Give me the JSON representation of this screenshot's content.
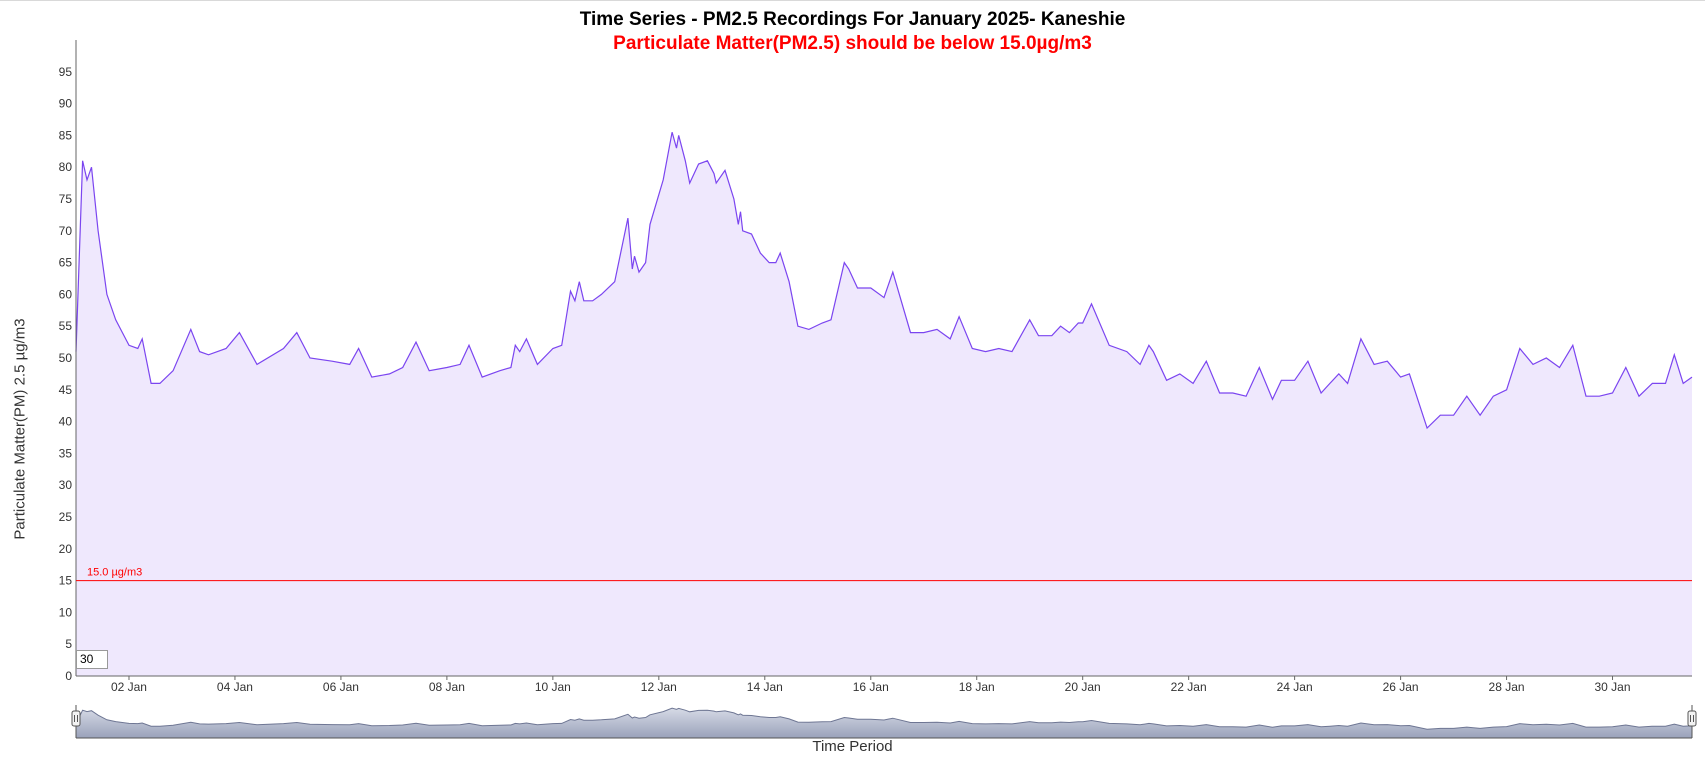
{
  "chart_data": {
    "type": "area",
    "title": "Time Series - PM2.5 Recordings For January 2025- Kaneshie",
    "subtitle": "Particulate Matter(PM2.5) should be below 15.0µg/m3",
    "xlabel": "Time Period",
    "ylabel": "Particulate Matter(PM) 2.5 µg/m3",
    "ylim": [
      0,
      100
    ],
    "xlim": [
      "2025-01-01",
      "2025-01-31 12:00"
    ],
    "grid": false,
    "yticks": [
      0,
      5,
      10,
      15,
      20,
      25,
      30,
      35,
      40,
      45,
      50,
      55,
      60,
      65,
      70,
      75,
      80,
      85,
      90,
      95
    ],
    "xtick_labels": [
      "02 Jan",
      "04 Jan",
      "06 Jan",
      "08 Jan",
      "10 Jan",
      "12 Jan",
      "14 Jan",
      "16 Jan",
      "18 Jan",
      "20 Jan",
      "22 Jan",
      "24 Jan",
      "26 Jan",
      "28 Jan",
      "30 Jan"
    ],
    "xtick_dates": [
      "2025-01-02",
      "2025-01-04",
      "2025-01-06",
      "2025-01-08",
      "2025-01-10",
      "2025-01-12",
      "2025-01-14",
      "2025-01-16",
      "2025-01-18",
      "2025-01-20",
      "2025-01-22",
      "2025-01-24",
      "2025-01-26",
      "2025-01-28",
      "2025-01-30"
    ],
    "threshold": {
      "value": 15,
      "label": "15.0 µg/m3",
      "color": "#ff0000"
    },
    "series": [
      {
        "color": "#7b45f0",
        "fill": "#efe8fd",
        "points": [
          [
            "2025-01-01 00:00",
            51
          ],
          [
            "2025-01-01 03:00",
            81
          ],
          [
            "2025-01-01 05:00",
            78
          ],
          [
            "2025-01-01 07:00",
            80
          ],
          [
            "2025-01-01 10:00",
            70
          ],
          [
            "2025-01-01 14:00",
            60
          ],
          [
            "2025-01-01 18:00",
            56
          ],
          [
            "2025-01-02 00:00",
            52
          ],
          [
            "2025-01-02 04:00",
            51.5
          ],
          [
            "2025-01-02 06:00",
            53
          ],
          [
            "2025-01-02 10:00",
            46
          ],
          [
            "2025-01-02 14:00",
            46
          ],
          [
            "2025-01-02 20:00",
            48
          ],
          [
            "2025-01-03 04:00",
            54.5
          ],
          [
            "2025-01-03 08:00",
            51
          ],
          [
            "2025-01-03 12:00",
            50.5
          ],
          [
            "2025-01-03 20:00",
            51.5
          ],
          [
            "2025-01-04 02:00",
            54
          ],
          [
            "2025-01-04 10:00",
            49
          ],
          [
            "2025-01-04 22:00",
            51.5
          ],
          [
            "2025-01-05 04:00",
            54
          ],
          [
            "2025-01-05 10:00",
            50
          ],
          [
            "2025-01-05 20:00",
            49.5
          ],
          [
            "2025-01-06 04:00",
            49
          ],
          [
            "2025-01-06 08:00",
            51.5
          ],
          [
            "2025-01-06 14:00",
            47
          ],
          [
            "2025-01-06 22:00",
            47.5
          ],
          [
            "2025-01-07 04:00",
            48.5
          ],
          [
            "2025-01-07 10:00",
            52.5
          ],
          [
            "2025-01-07 16:00",
            48
          ],
          [
            "2025-01-08 00:00",
            48.5
          ],
          [
            "2025-01-08 06:00",
            49
          ],
          [
            "2025-01-08 10:00",
            52
          ],
          [
            "2025-01-08 16:00",
            47
          ],
          [
            "2025-01-09 00:00",
            48
          ],
          [
            "2025-01-09 05:00",
            48.5
          ],
          [
            "2025-01-09 07:00",
            52
          ],
          [
            "2025-01-09 09:00",
            51
          ],
          [
            "2025-01-09 12:00",
            53
          ],
          [
            "2025-01-09 17:00",
            49
          ],
          [
            "2025-01-10 00:00",
            51.5
          ],
          [
            "2025-01-10 04:00",
            52
          ],
          [
            "2025-01-10 08:00",
            60.5
          ],
          [
            "2025-01-10 10:00",
            59
          ],
          [
            "2025-01-10 12:00",
            62
          ],
          [
            "2025-01-10 14:00",
            59
          ],
          [
            "2025-01-10 18:00",
            59
          ],
          [
            "2025-01-10 22:00",
            60
          ],
          [
            "2025-01-11 04:00",
            62
          ],
          [
            "2025-01-11 10:00",
            72
          ],
          [
            "2025-01-11 12:00",
            64
          ],
          [
            "2025-01-11 13:00",
            66
          ],
          [
            "2025-01-11 15:00",
            63.5
          ],
          [
            "2025-01-11 18:00",
            65
          ],
          [
            "2025-01-11 20:00",
            71
          ],
          [
            "2025-01-12 02:00",
            78
          ],
          [
            "2025-01-12 06:00",
            85.5
          ],
          [
            "2025-01-12 08:00",
            83
          ],
          [
            "2025-01-12 09:00",
            85
          ],
          [
            "2025-01-12 12:00",
            81
          ],
          [
            "2025-01-12 14:00",
            77.5
          ],
          [
            "2025-01-12 18:00",
            80.5
          ],
          [
            "2025-01-12 22:00",
            81
          ],
          [
            "2025-01-13 01:00",
            79
          ],
          [
            "2025-01-13 02:00",
            77.5
          ],
          [
            "2025-01-13 06:00",
            79.5
          ],
          [
            "2025-01-13 10:00",
            75
          ],
          [
            "2025-01-13 12:00",
            71
          ],
          [
            "2025-01-13 13:00",
            73
          ],
          [
            "2025-01-13 14:00",
            70
          ],
          [
            "2025-01-13 18:00",
            69.5
          ],
          [
            "2025-01-13 22:00",
            66.5
          ],
          [
            "2025-01-14 02:00",
            65
          ],
          [
            "2025-01-14 05:00",
            65
          ],
          [
            "2025-01-14 07:00",
            66.5
          ],
          [
            "2025-01-14 11:00",
            62
          ],
          [
            "2025-01-14 15:00",
            55
          ],
          [
            "2025-01-14 20:00",
            54.5
          ],
          [
            "2025-01-15 02:00",
            55.5
          ],
          [
            "2025-01-15 06:00",
            56
          ],
          [
            "2025-01-15 12:00",
            65
          ],
          [
            "2025-01-15 14:00",
            64
          ],
          [
            "2025-01-15 18:00",
            61
          ],
          [
            "2025-01-16 00:00",
            61
          ],
          [
            "2025-01-16 06:00",
            59.5
          ],
          [
            "2025-01-16 10:00",
            63.5
          ],
          [
            "2025-01-16 18:00",
            54
          ],
          [
            "2025-01-17 00:00",
            54
          ],
          [
            "2025-01-17 06:00",
            54.5
          ],
          [
            "2025-01-17 12:00",
            53
          ],
          [
            "2025-01-17 16:00",
            56.5
          ],
          [
            "2025-01-17 22:00",
            51.5
          ],
          [
            "2025-01-18 04:00",
            51
          ],
          [
            "2025-01-18 10:00",
            51.5
          ],
          [
            "2025-01-18 16:00",
            51
          ],
          [
            "2025-01-19 00:00",
            56
          ],
          [
            "2025-01-19 04:00",
            53.5
          ],
          [
            "2025-01-19 10:00",
            53.5
          ],
          [
            "2025-01-19 14:00",
            55
          ],
          [
            "2025-01-19 18:00",
            54
          ],
          [
            "2025-01-19 22:00",
            55.5
          ],
          [
            "2025-01-20 00:00",
            55.5
          ],
          [
            "2025-01-20 04:00",
            58.5
          ],
          [
            "2025-01-20 12:00",
            52
          ],
          [
            "2025-01-20 20:00",
            51
          ],
          [
            "2025-01-21 02:00",
            49
          ],
          [
            "2025-01-21 06:00",
            52
          ],
          [
            "2025-01-21 08:00",
            51
          ],
          [
            "2025-01-21 14:00",
            46.5
          ],
          [
            "2025-01-21 20:00",
            47.5
          ],
          [
            "2025-01-22 02:00",
            46
          ],
          [
            "2025-01-22 08:00",
            49.5
          ],
          [
            "2025-01-22 14:00",
            44.5
          ],
          [
            "2025-01-22 20:00",
            44.5
          ],
          [
            "2025-01-23 02:00",
            44
          ],
          [
            "2025-01-23 08:00",
            48.5
          ],
          [
            "2025-01-23 14:00",
            43.5
          ],
          [
            "2025-01-23 18:00",
            46.5
          ],
          [
            "2025-01-24 00:00",
            46.5
          ],
          [
            "2025-01-24 06:00",
            49.5
          ],
          [
            "2025-01-24 12:00",
            44.5
          ],
          [
            "2025-01-24 16:00",
            46
          ],
          [
            "2025-01-24 20:00",
            47.5
          ],
          [
            "2025-01-25 00:00",
            46
          ],
          [
            "2025-01-25 06:00",
            53
          ],
          [
            "2025-01-25 12:00",
            49
          ],
          [
            "2025-01-25 18:00",
            49.5
          ],
          [
            "2025-01-26 00:00",
            47
          ],
          [
            "2025-01-26 04:00",
            47.5
          ],
          [
            "2025-01-26 12:00",
            39
          ],
          [
            "2025-01-26 18:00",
            41
          ],
          [
            "2025-01-27 00:00",
            41
          ],
          [
            "2025-01-27 06:00",
            44
          ],
          [
            "2025-01-27 12:00",
            41
          ],
          [
            "2025-01-27 18:00",
            44
          ],
          [
            "2025-01-28 00:00",
            45
          ],
          [
            "2025-01-28 06:00",
            51.5
          ],
          [
            "2025-01-28 12:00",
            49
          ],
          [
            "2025-01-28 18:00",
            50
          ],
          [
            "2025-01-29 00:00",
            48.5
          ],
          [
            "2025-01-29 06:00",
            52
          ],
          [
            "2025-01-29 12:00",
            44
          ],
          [
            "2025-01-29 18:00",
            44
          ],
          [
            "2025-01-30 00:00",
            44.5
          ],
          [
            "2025-01-30 06:00",
            48.5
          ],
          [
            "2025-01-30 12:00",
            44
          ],
          [
            "2025-01-30 18:00",
            46
          ],
          [
            "2025-01-31 00:00",
            46
          ],
          [
            "2025-01-31 04:00",
            50.5
          ],
          [
            "2025-01-31 08:00",
            46
          ],
          [
            "2025-01-31 12:00",
            47
          ]
        ]
      }
    ]
  },
  "zoom": {
    "value": "30"
  }
}
